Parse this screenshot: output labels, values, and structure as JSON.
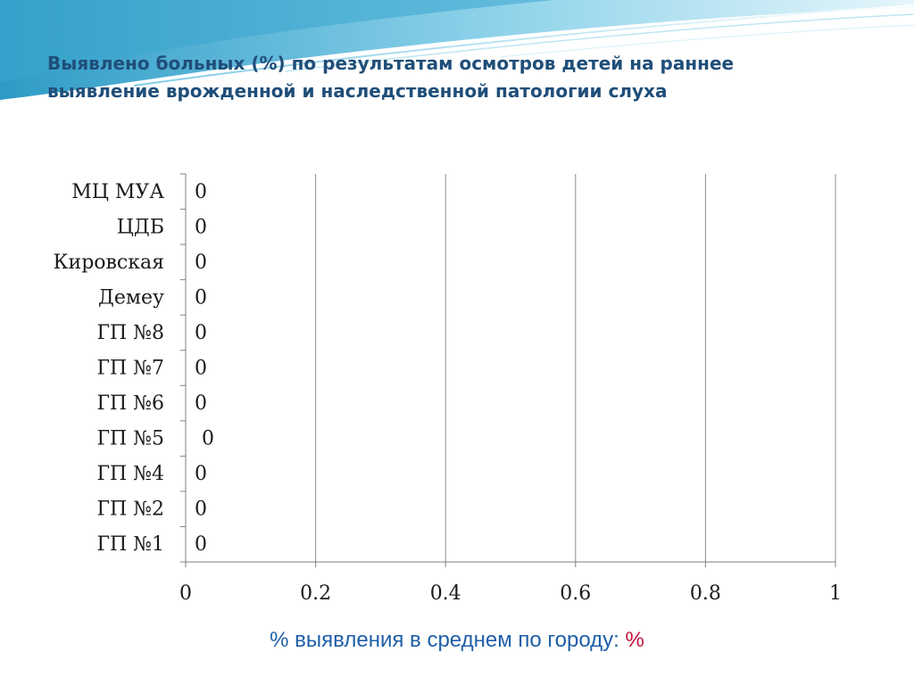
{
  "slide": {
    "title_lines": [
      "Выявлено больных (%) по результатам осмотров детей на раннее",
      "выявление врожденной и наследственной патологии слуха"
    ],
    "footnote_label": "% выявления в среднем по городу:",
    "footnote_value": "%"
  },
  "colors": {
    "title": "#1f4e79",
    "footnote": "#1f5fa8",
    "accent": "#c0143c",
    "wave_dark": "#3aa6cf",
    "wave_light": "#a9ddef"
  },
  "chart_data": {
    "type": "bar",
    "orientation": "horizontal",
    "categories": [
      "МЦ МУА",
      "ЦДБ",
      "Кировская",
      "Демеу",
      "ГП №8",
      "ГП  №7",
      "ГП №6",
      "ГП №5",
      "ГП №4",
      "ГП №2",
      "ГП №1"
    ],
    "values": [
      0,
      0,
      0,
      0,
      0,
      0,
      0,
      0,
      0,
      0,
      0
    ],
    "data_labels": [
      "0",
      "0",
      "0",
      "0",
      "0",
      "0",
      "0",
      "0",
      "0",
      "0",
      "0"
    ],
    "xlim": [
      0,
      1
    ],
    "x_ticks": [
      0,
      0.2,
      0.4,
      0.6,
      0.8,
      1
    ],
    "x_tick_labels": [
      "0",
      "0.2",
      "0.4",
      "0.6",
      "0.8",
      "1"
    ],
    "grid": "vertical",
    "legend": "none"
  }
}
